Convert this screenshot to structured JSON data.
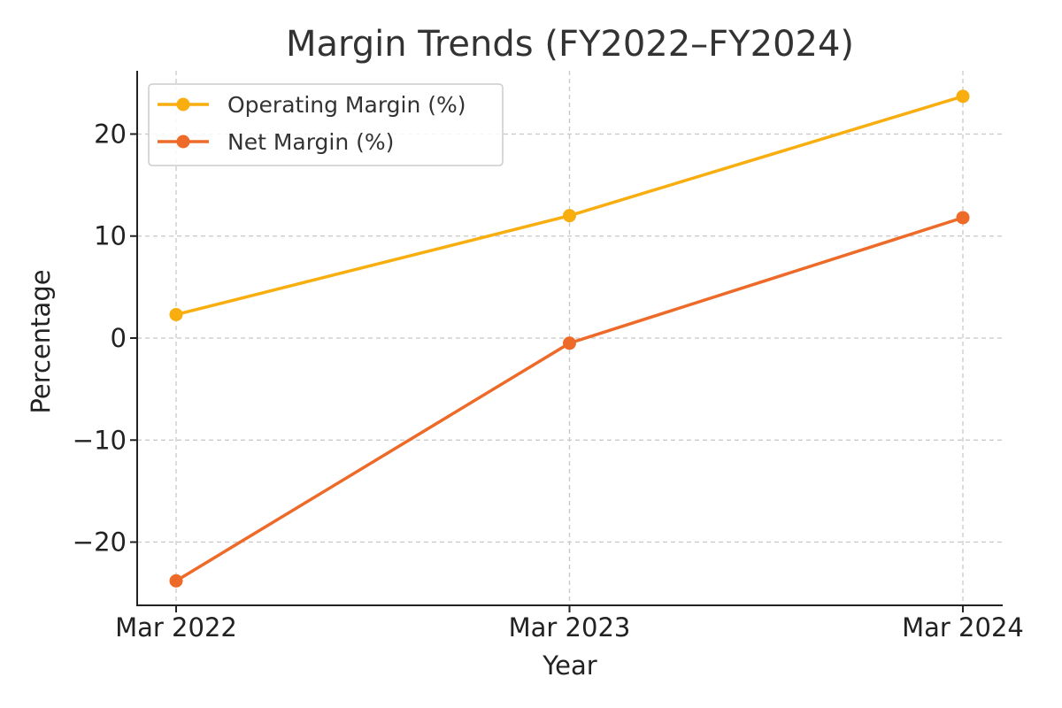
{
  "chart_data": {
    "type": "line",
    "title": "Margin Trends (FY2022–FY2024)",
    "xlabel": "Year",
    "ylabel": "Percentage",
    "categories": [
      "Mar 2022",
      "Mar 2023",
      "Mar 2024"
    ],
    "yticks": [
      -20,
      -10,
      0,
      10,
      20
    ],
    "ytick_labels": [
      "−20",
      "−10",
      "0",
      "10",
      "20"
    ],
    "ylim": [
      -26.2,
      26.2
    ],
    "grid": true,
    "legend_position": "top-left",
    "series": [
      {
        "name": "Operating Margin (%)",
        "color": "#F9AE0F",
        "values": [
          2.3,
          12.0,
          23.7
        ]
      },
      {
        "name": "Net Margin (%)",
        "color": "#EE6A28",
        "values": [
          -23.8,
          -0.5,
          11.8
        ]
      }
    ]
  }
}
